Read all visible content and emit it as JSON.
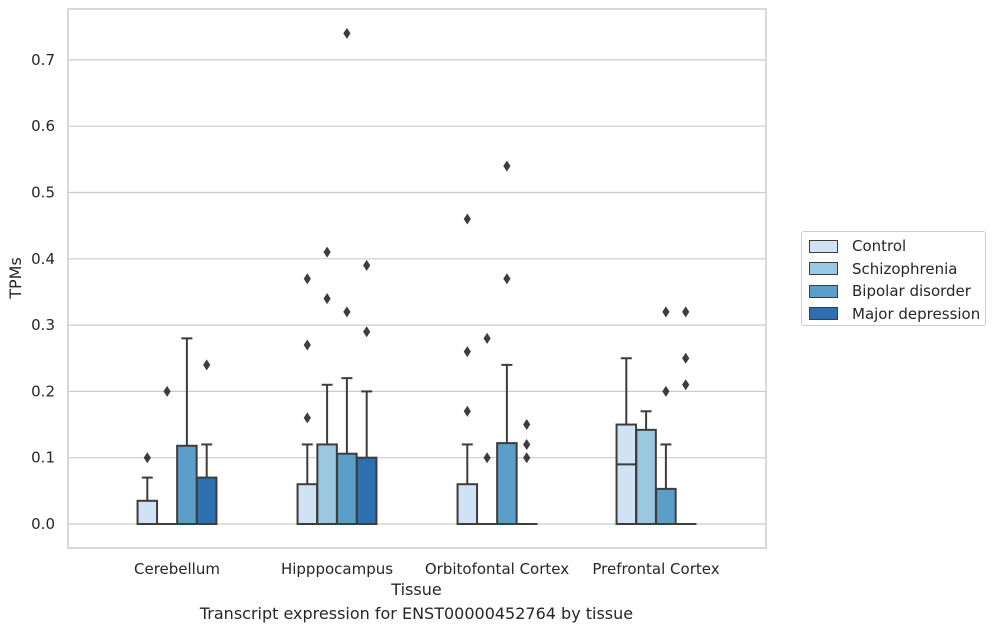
{
  "chart_data": {
    "type": "boxplot",
    "xlabel": "Tissue",
    "ylabel": "TPMs",
    "ylim": [
      -0.035,
      0.78
    ],
    "yticks": [
      0.0,
      0.1,
      0.2,
      0.3,
      0.4,
      0.5,
      0.6,
      0.7
    ],
    "ytick_labels": [
      "0.0",
      "0.1",
      "0.2",
      "0.3",
      "0.4",
      "0.5",
      "0.6",
      "0.7"
    ],
    "grid": "horizontal",
    "legend_position": "right",
    "categories": [
      "Cerebellum",
      "Hipppocampus",
      "Orbitofontal Cortex",
      "Prefrontal Cortex"
    ],
    "series": [
      {
        "name": "Control",
        "color": "#d1e2f2",
        "boxes": [
          {
            "q1": 0.0,
            "median": 0.0,
            "q3": 0.035,
            "whisker_low": 0.0,
            "whisker_high": 0.07,
            "outliers": [
              0.1
            ]
          },
          {
            "q1": 0.0,
            "median": 0.0,
            "q3": 0.06,
            "whisker_low": 0.0,
            "whisker_high": 0.12,
            "outliers": [
              0.16,
              0.27,
              0.37
            ]
          },
          {
            "q1": 0.0,
            "median": 0.0,
            "q3": 0.06,
            "whisker_low": 0.0,
            "whisker_high": 0.12,
            "outliers": [
              0.17,
              0.26,
              0.46
            ]
          },
          {
            "q1": 0.0,
            "median": 0.09,
            "q3": 0.15,
            "whisker_low": 0.0,
            "whisker_high": 0.25,
            "outliers": []
          }
        ]
      },
      {
        "name": "Schizophrenia",
        "color": "#9ac8e0",
        "boxes": [
          {
            "q1": 0.0,
            "median": 0.0,
            "q3": 0.0,
            "whisker_low": 0.0,
            "whisker_high": 0.0,
            "outliers": [
              0.2
            ]
          },
          {
            "q1": 0.0,
            "median": 0.0,
            "q3": 0.12,
            "whisker_low": 0.0,
            "whisker_high": 0.21,
            "outliers": [
              0.34,
              0.41
            ]
          },
          {
            "q1": 0.0,
            "median": 0.0,
            "q3": 0.0,
            "whisker_low": 0.0,
            "whisker_high": 0.0,
            "outliers": [
              0.1,
              0.28
            ]
          },
          {
            "q1": 0.0,
            "median": 0.0,
            "q3": 0.142,
            "whisker_low": 0.0,
            "whisker_high": 0.17,
            "outliers": []
          }
        ]
      },
      {
        "name": "Bipolar disorder",
        "color": "#5a9ec9",
        "boxes": [
          {
            "q1": 0.0,
            "median": 0.0,
            "q3": 0.118,
            "whisker_low": 0.0,
            "whisker_high": 0.28,
            "outliers": []
          },
          {
            "q1": 0.0,
            "median": 0.0,
            "q3": 0.106,
            "whisker_low": 0.0,
            "whisker_high": 0.22,
            "outliers": [
              0.32,
              0.74
            ]
          },
          {
            "q1": 0.0,
            "median": 0.0,
            "q3": 0.122,
            "whisker_low": 0.0,
            "whisker_high": 0.24,
            "outliers": [
              0.37,
              0.54
            ]
          },
          {
            "q1": 0.0,
            "median": 0.0,
            "q3": 0.053,
            "whisker_low": 0.0,
            "whisker_high": 0.12,
            "outliers": [
              0.2,
              0.32
            ]
          }
        ]
      },
      {
        "name": "Major depression",
        "color": "#2d6fb0",
        "boxes": [
          {
            "q1": 0.0,
            "median": 0.0,
            "q3": 0.07,
            "whisker_low": 0.0,
            "whisker_high": 0.12,
            "outliers": [
              0.24
            ]
          },
          {
            "q1": 0.0,
            "median": 0.0,
            "q3": 0.1,
            "whisker_low": 0.0,
            "whisker_high": 0.2,
            "outliers": [
              0.29,
              0.39
            ]
          },
          {
            "q1": 0.0,
            "median": 0.0,
            "q3": 0.0,
            "whisker_low": 0.0,
            "whisker_high": 0.0,
            "outliers": [
              0.1,
              0.12,
              0.15
            ]
          },
          {
            "q1": 0.0,
            "median": 0.0,
            "q3": 0.0,
            "whisker_low": 0.0,
            "whisker_high": 0.0,
            "outliers": [
              0.21,
              0.25,
              0.32
            ]
          }
        ]
      }
    ],
    "caption": "Transcript expression for ENST00000452764 by tissue"
  }
}
